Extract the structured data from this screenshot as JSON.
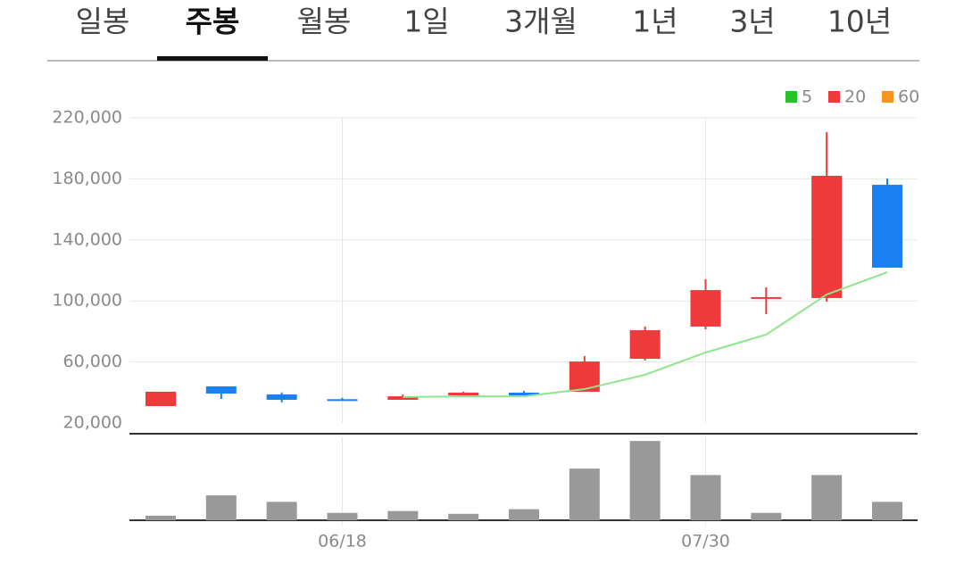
{
  "tabs": [
    "일봉",
    "주봉",
    "월봉",
    "1일",
    "3개월",
    "1년",
    "3년",
    "10년"
  ],
  "selected_tab": 1,
  "chart_data": {
    "type": "candlestick",
    "categories": [
      null,
      null,
      null,
      "06/18",
      null,
      null,
      null,
      null,
      null,
      "07/30",
      null,
      null,
      null
    ],
    "open": [
      31100,
      44000,
      38700,
      35600,
      35200,
      38100,
      39900,
      40500,
      62100,
      83200,
      101900,
      101900,
      176100
    ],
    "high": [
      40500,
      44000,
      40000,
      36500,
      38700,
      40500,
      41000,
      63900,
      83200,
      114200,
      108900,
      210600,
      180200
    ],
    "low": [
      31100,
      35800,
      33500,
      34800,
      35200,
      38100,
      38100,
      40500,
      60900,
      81400,
      91300,
      99500,
      121800
    ],
    "close": [
      40500,
      39300,
      35200,
      35000,
      37500,
      39900,
      38100,
      60300,
      80800,
      107100,
      102500,
      182000,
      121800
    ],
    "up_color": "#ef3a3c",
    "down_color": "#1a7ff0",
    "moving_averages": [
      {
        "name": "5",
        "color": "#22c322",
        "line_color": "#8ee68a",
        "values": [
          null,
          null,
          null,
          null,
          37000,
          37500,
          37500,
          42200,
          51600,
          66200,
          77900,
          104200,
          118800
        ]
      },
      {
        "name": "20",
        "color": "#ef3a3c"
      },
      {
        "name": "60",
        "color": "#f7941d"
      }
    ],
    "ylim": [
      20000,
      220000
    ],
    "yticks": [
      {
        "value": 220000,
        "label": "220,000"
      },
      {
        "value": 180000,
        "label": "180,000"
      },
      {
        "value": 140000,
        "label": "140,000"
      },
      {
        "value": 100000,
        "label": "100,000"
      },
      {
        "value": 60000,
        "label": "60,000"
      },
      {
        "value": 20000,
        "label": "20,000"
      }
    ],
    "volume": [
      5,
      27,
      20,
      8,
      10,
      7,
      12,
      56,
      86,
      49,
      8,
      49,
      20
    ],
    "volume_color": "#999999",
    "volume_ylim": [
      0,
      90
    ],
    "grid": true
  }
}
